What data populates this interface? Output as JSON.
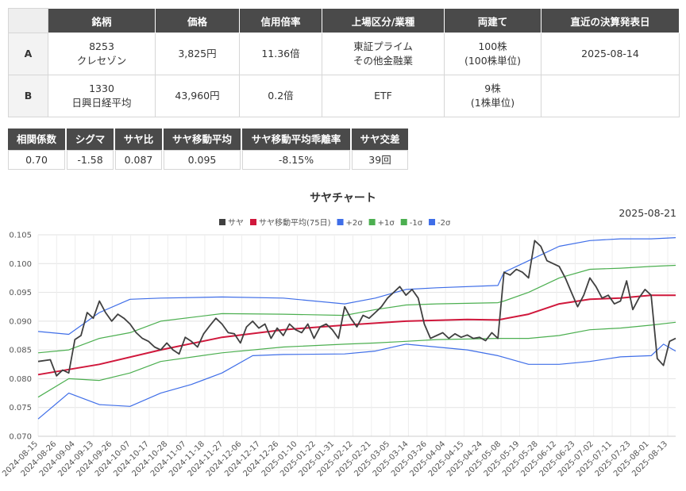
{
  "table": {
    "headers": [
      "",
      "銘柄",
      "価格",
      "信用倍率",
      "上場区分/業種",
      "両建て",
      "直近の決算発表日"
    ],
    "rows": [
      {
        "label": "A",
        "code": "8253",
        "name": "クレセゾン",
        "price": "3,825円",
        "margin_ratio": "11.36倍",
        "market": "東証プライム",
        "industry": "その他金融業",
        "both": "100株",
        "unit": "(100株単位)",
        "earnings": "2025-08-14"
      },
      {
        "label": "B",
        "code": "1330",
        "name": "日興日経平均",
        "price": "43,960円",
        "margin_ratio": "0.2倍",
        "market": "ETF",
        "industry": "",
        "both": "9株",
        "unit": "(1株単位)",
        "earnings": ""
      }
    ]
  },
  "stats": [
    {
      "label": "相関係数",
      "value": "0.70"
    },
    {
      "label": "シグマ",
      "value": "-1.58"
    },
    {
      "label": "サヤ比",
      "value": "0.087"
    },
    {
      "label": "サヤ移動平均",
      "value": "0.095"
    },
    {
      "label": "サヤ移動平均乖離率",
      "value": "-8.15%"
    },
    {
      "label": "サヤ交差",
      "value": "39回"
    }
  ],
  "chart_data": {
    "type": "line",
    "title": "サヤチャート",
    "date_label": "2025-08-21",
    "ylim": [
      0.07,
      0.105
    ],
    "yticks": [
      0.07,
      0.075,
      0.08,
      0.085,
      0.09,
      0.095,
      0.1,
      0.105
    ],
    "grid": true,
    "legend": "top",
    "x_ticks": [
      "2024-08-15",
      "2024-08-26",
      "2024-09-04",
      "2024-09-13",
      "2024-09-26",
      "2024-10-07",
      "2024-10-17",
      "2024-10-28",
      "2024-11-07",
      "2024-11-18",
      "2024-11-27",
      "2024-12-06",
      "2024-12-17",
      "2024-12-26",
      "2025-01-10",
      "2025-01-22",
      "2025-01-31",
      "2025-02-12",
      "2025-02-21",
      "2025-03-05",
      "2025-03-14",
      "2025-03-26",
      "2025-04-04",
      "2025-04-15",
      "2025-04-24",
      "2025-05-08",
      "2025-05-19",
      "2025-05-28",
      "2025-06-12",
      "2025-06-23",
      "2025-07-02",
      "2025-07-11",
      "2025-07-23",
      "2025-08-01",
      "2025-08-13"
    ],
    "series": [
      {
        "name": "サヤ",
        "color": "#404040",
        "points": [
          [
            0,
            0.083
          ],
          [
            2,
            0.0833
          ],
          [
            3,
            0.0805
          ],
          [
            4,
            0.0815
          ],
          [
            5,
            0.081
          ],
          [
            6,
            0.0868
          ],
          [
            7,
            0.0875
          ],
          [
            8,
            0.0915
          ],
          [
            9,
            0.0905
          ],
          [
            10,
            0.0935
          ],
          [
            11,
            0.0915
          ],
          [
            12,
            0.09
          ],
          [
            13,
            0.0912
          ],
          [
            14,
            0.0905
          ],
          [
            15,
            0.0895
          ],
          [
            16,
            0.088
          ],
          [
            17,
            0.087
          ],
          [
            18,
            0.0865
          ],
          [
            19,
            0.0855
          ],
          [
            20,
            0.085
          ],
          [
            21,
            0.0862
          ],
          [
            22,
            0.085
          ],
          [
            23,
            0.0843
          ],
          [
            24,
            0.0872
          ],
          [
            25,
            0.0865
          ],
          [
            26,
            0.0855
          ],
          [
            27,
            0.0878
          ],
          [
            28,
            0.0892
          ],
          [
            29,
            0.0905
          ],
          [
            30,
            0.0895
          ],
          [
            31,
            0.088
          ],
          [
            32,
            0.0878
          ],
          [
            33,
            0.0862
          ],
          [
            34,
            0.089
          ],
          [
            35,
            0.09
          ],
          [
            36,
            0.0888
          ],
          [
            37,
            0.0895
          ],
          [
            38,
            0.087
          ],
          [
            39,
            0.0888
          ],
          [
            40,
            0.0875
          ],
          [
            41,
            0.0895
          ],
          [
            42,
            0.0885
          ],
          [
            43,
            0.088
          ],
          [
            44,
            0.0895
          ],
          [
            45,
            0.087
          ],
          [
            46,
            0.089
          ],
          [
            47,
            0.0895
          ],
          [
            48,
            0.0885
          ],
          [
            49,
            0.087
          ],
          [
            50,
            0.0925
          ],
          [
            51,
            0.0905
          ],
          [
            52,
            0.089
          ],
          [
            53,
            0.091
          ],
          [
            54,
            0.0905
          ],
          [
            55,
            0.0915
          ],
          [
            56,
            0.0925
          ],
          [
            57,
            0.094
          ],
          [
            58,
            0.095
          ],
          [
            59,
            0.096
          ],
          [
            60,
            0.0945
          ],
          [
            61,
            0.0955
          ],
          [
            62,
            0.094
          ],
          [
            63,
            0.0895
          ],
          [
            64,
            0.087
          ],
          [
            65,
            0.0875
          ],
          [
            66,
            0.088
          ],
          [
            67,
            0.087
          ],
          [
            68,
            0.0878
          ],
          [
            69,
            0.0872
          ],
          [
            70,
            0.0876
          ],
          [
            71,
            0.087
          ],
          [
            72,
            0.0872
          ],
          [
            73,
            0.0866
          ],
          [
            74,
            0.088
          ],
          [
            75,
            0.087
          ],
          [
            76,
            0.0985
          ],
          [
            77,
            0.098
          ],
          [
            78,
            0.099
          ],
          [
            79,
            0.0985
          ],
          [
            80,
            0.0975
          ],
          [
            81,
            0.104
          ],
          [
            82,
            0.103
          ],
          [
            83,
            0.1005
          ],
          [
            84,
            0.1
          ],
          [
            85,
            0.0995
          ],
          [
            86,
            0.0975
          ],
          [
            87,
            0.095
          ],
          [
            88,
            0.0925
          ],
          [
            89,
            0.0945
          ],
          [
            90,
            0.0975
          ],
          [
            91,
            0.096
          ],
          [
            92,
            0.094
          ],
          [
            93,
            0.0945
          ],
          [
            94,
            0.093
          ],
          [
            95,
            0.0935
          ],
          [
            96,
            0.097
          ],
          [
            97,
            0.092
          ],
          [
            98,
            0.094
          ],
          [
            99,
            0.0955
          ],
          [
            100,
            0.0945
          ],
          [
            101,
            0.0835
          ],
          [
            102,
            0.0823
          ],
          [
            103,
            0.0865
          ],
          [
            104,
            0.087
          ]
        ]
      },
      {
        "name": "サヤ移動平均(75日)",
        "color": "#d0183c",
        "points": [
          [
            0,
            0.0807
          ],
          [
            10,
            0.0825
          ],
          [
            20,
            0.085
          ],
          [
            30,
            0.0872
          ],
          [
            40,
            0.0885
          ],
          [
            50,
            0.0893
          ],
          [
            60,
            0.09
          ],
          [
            70,
            0.0903
          ],
          [
            75,
            0.0902
          ],
          [
            80,
            0.0912
          ],
          [
            85,
            0.093
          ],
          [
            90,
            0.0938
          ],
          [
            95,
            0.094
          ],
          [
            100,
            0.0945
          ],
          [
            104,
            0.0945
          ]
        ]
      },
      {
        "name": "+2σ",
        "color": "#3f6ee8",
        "points": [
          [
            0,
            0.0882
          ],
          [
            5,
            0.0877
          ],
          [
            10,
            0.0915
          ],
          [
            15,
            0.0938
          ],
          [
            20,
            0.094
          ],
          [
            30,
            0.0942
          ],
          [
            40,
            0.094
          ],
          [
            50,
            0.093
          ],
          [
            55,
            0.094
          ],
          [
            60,
            0.0955
          ],
          [
            65,
            0.0958
          ],
          [
            75,
            0.0962
          ],
          [
            76,
            0.0985
          ],
          [
            80,
            0.1005
          ],
          [
            85,
            0.103
          ],
          [
            90,
            0.104
          ],
          [
            95,
            0.1043
          ],
          [
            100,
            0.1043
          ],
          [
            104,
            0.1045
          ]
        ]
      },
      {
        "name": "+1σ",
        "color": "#4caf50",
        "points": [
          [
            0,
            0.0845
          ],
          [
            5,
            0.085
          ],
          [
            10,
            0.087
          ],
          [
            15,
            0.088
          ],
          [
            20,
            0.09
          ],
          [
            30,
            0.0913
          ],
          [
            40,
            0.0912
          ],
          [
            50,
            0.091
          ],
          [
            55,
            0.092
          ],
          [
            60,
            0.0928
          ],
          [
            65,
            0.093
          ],
          [
            75,
            0.0932
          ],
          [
            76,
            0.0935
          ],
          [
            80,
            0.095
          ],
          [
            85,
            0.0975
          ],
          [
            90,
            0.099
          ],
          [
            95,
            0.0992
          ],
          [
            100,
            0.0995
          ],
          [
            104,
            0.0997
          ]
        ]
      },
      {
        "name": "-1σ",
        "color": "#4caf50",
        "points": [
          [
            0,
            0.0768
          ],
          [
            5,
            0.08
          ],
          [
            10,
            0.0797
          ],
          [
            15,
            0.081
          ],
          [
            20,
            0.083
          ],
          [
            30,
            0.0845
          ],
          [
            40,
            0.0855
          ],
          [
            50,
            0.086
          ],
          [
            55,
            0.0862
          ],
          [
            60,
            0.0865
          ],
          [
            65,
            0.0868
          ],
          [
            75,
            0.087
          ],
          [
            80,
            0.087
          ],
          [
            85,
            0.0875
          ],
          [
            90,
            0.0885
          ],
          [
            95,
            0.0888
          ],
          [
            100,
            0.0893
          ],
          [
            104,
            0.0898
          ]
        ]
      },
      {
        "name": "-2σ",
        "color": "#3f6ee8",
        "points": [
          [
            0,
            0.073
          ],
          [
            5,
            0.0775
          ],
          [
            10,
            0.0755
          ],
          [
            15,
            0.0752
          ],
          [
            20,
            0.0775
          ],
          [
            25,
            0.079
          ],
          [
            30,
            0.081
          ],
          [
            35,
            0.084
          ],
          [
            40,
            0.0842
          ],
          [
            50,
            0.0843
          ],
          [
            55,
            0.0848
          ],
          [
            60,
            0.086
          ],
          [
            65,
            0.0855
          ],
          [
            70,
            0.085
          ],
          [
            75,
            0.084
          ],
          [
            80,
            0.0825
          ],
          [
            85,
            0.0825
          ],
          [
            90,
            0.083
          ],
          [
            95,
            0.0838
          ],
          [
            100,
            0.084
          ],
          [
            102,
            0.086
          ],
          [
            104,
            0.0848
          ]
        ]
      }
    ]
  }
}
